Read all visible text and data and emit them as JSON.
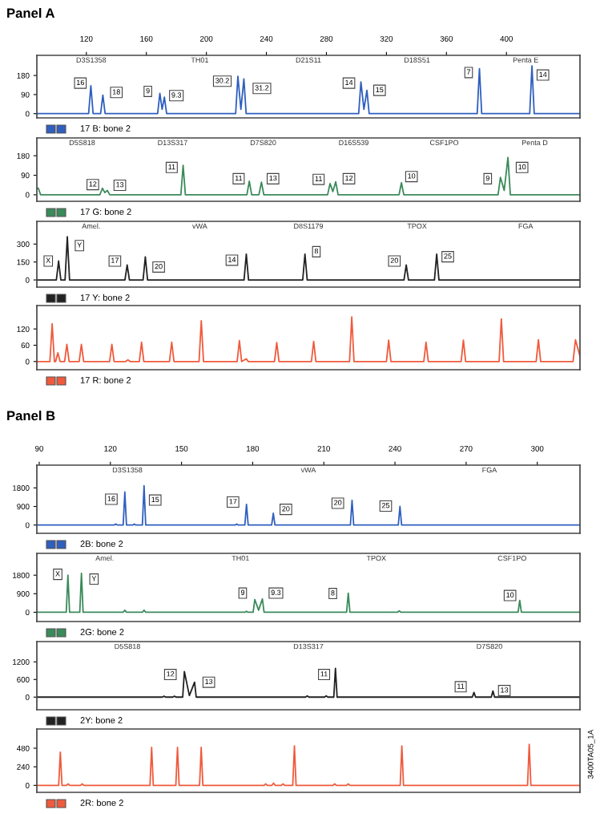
{
  "chart_data": [
    {
      "type": "line",
      "title": "Panel A",
      "x": [
        87,
        121.5,
        123,
        124.5,
        129.5,
        131,
        132.5,
        167.5,
        169,
        170.5,
        172,
        173.5,
        219.5,
        221,
        223,
        225,
        226.5,
        301.5,
        303,
        305,
        307,
        308.5,
        380.5,
        382,
        383.5,
        415.5,
        417,
        418.5,
        449
      ],
      "series": [
        {
          "color": "#2f5fbf",
          "values": [
            0,
            0,
            132,
            0,
            0,
            87,
            0,
            0,
            96,
            20,
            78,
            0,
            0,
            176,
            20,
            164,
            0,
            0,
            150,
            20,
            110,
            0,
            0,
            212,
            0,
            0,
            225,
            0,
            0
          ]
        }
      ],
      "xlim": [
        87,
        449
      ],
      "xticks": [
        120,
        160,
        200,
        240,
        280,
        320,
        360,
        400
      ],
      "ylim": [
        -20,
        275
      ],
      "yticks": [
        0,
        90,
        180
      ],
      "grid": false,
      "annotations": [
        "17 B: bone 2",
        "D3S1358",
        "TH01",
        "D21S11",
        "D18S51",
        "Penta E",
        {
          "text": "16",
          "x": 116,
          "y": 144
        },
        {
          "text": "18",
          "x": 140,
          "y": 100
        },
        {
          "text": "9",
          "x": 161,
          "y": 105
        },
        {
          "text": "9.3",
          "x": 180,
          "y": 85
        },
        {
          "text": "30.2",
          "x": 210.6,
          "y": 153
        },
        {
          "text": "31.2",
          "x": 237,
          "y": 119
        },
        {
          "text": "14",
          "x": 295,
          "y": 144
        },
        {
          "text": "15",
          "x": 315.4,
          "y": 110
        },
        {
          "text": "7",
          "x": 374.8,
          "y": 194
        },
        {
          "text": "14",
          "x": 424.3,
          "y": 182
        }
      ]
    },
    {
      "type": "line",
      "x": [
        87,
        88,
        89.5,
        129,
        130.7,
        132.3,
        134,
        135.6,
        183,
        184.5,
        186,
        227,
        228.6,
        230.2,
        235,
        236.7,
        238.3,
        280.8,
        282.4,
        284.3,
        286.2,
        287.8,
        328.4,
        330,
        331.6,
        394.4,
        396,
        398.5,
        401,
        402.6,
        449
      ],
      "series": [
        {
          "color": "#3a8a5a",
          "values": [
            30,
            30,
            0,
            0,
            30,
            10,
            20,
            0,
            0,
            136,
            0,
            0,
            63,
            0,
            0,
            58,
            0,
            0,
            52,
            15,
            60,
            0,
            0,
            55,
            0,
            0,
            80,
            20,
            172,
            0,
            0
          ]
        }
      ],
      "xlim": [
        87,
        449
      ],
      "ylim": [
        -30,
        262
      ],
      "yticks": [
        0,
        90,
        180
      ],
      "tick_labels": "y",
      "grid": false,
      "annotations": [
        "17 G: bone 2",
        "D5S818",
        "D13S317",
        "D7S820",
        "D16S539",
        "CSF1PO",
        "Penta D",
        {
          "text": "12",
          "x": 124.3,
          "y": 47
        },
        {
          "text": "13",
          "x": 142.3,
          "y": 44
        },
        {
          "text": "11",
          "x": 176.9,
          "y": 126
        },
        {
          "text": "11",
          "x": 221.5,
          "y": 74
        },
        {
          "text": "13",
          "x": 244.4,
          "y": 74
        },
        {
          "text": "11",
          "x": 274.8,
          "y": 71
        },
        {
          "text": "12",
          "x": 295,
          "y": 74
        },
        {
          "text": "10",
          "x": 336.7,
          "y": 84
        },
        {
          "text": "9",
          "x": 387.5,
          "y": 74
        },
        {
          "text": "10",
          "x": 410.4,
          "y": 126
        }
      ]
    },
    {
      "type": "line",
      "x": [
        87,
        100,
        101.5,
        103,
        105.8,
        107.3,
        108.8,
        145.7,
        147.2,
        148.7,
        157.8,
        159.3,
        160.8,
        225.1,
        226.6,
        228.1,
        264.2,
        265.7,
        267.2,
        331.7,
        333.2,
        334.7,
        352,
        353.5,
        355,
        449
      ],
      "series": [
        {
          "color": "#222222",
          "values": [
            0,
            0,
            158,
            0,
            0,
            361,
            0,
            0,
            125,
            0,
            0,
            193,
            0,
            0,
            216,
            0,
            0,
            216,
            0,
            0,
            125,
            0,
            0,
            216,
            0,
            0
          ]
        }
      ],
      "xlim": [
        87,
        449
      ],
      "ylim": [
        -60,
        490
      ],
      "yticks": [
        0,
        150,
        300
      ],
      "tick_labels": "y",
      "grid": false,
      "annotations": [
        "17 Y: bone 2",
        "Amel.",
        "vWA",
        "D8S1179",
        "TPOX",
        "FGA",
        {
          "text": "X",
          "x": 94.6,
          "y": 158
        },
        {
          "text": "Y",
          "x": 115.4,
          "y": 287
        },
        {
          "text": "17",
          "x": 139,
          "y": 158
        },
        {
          "text": "20",
          "x": 168.2,
          "y": 108
        },
        {
          "text": "14",
          "x": 217,
          "y": 165
        },
        {
          "text": "8",
          "x": 273.3,
          "y": 236
        },
        {
          "text": "20",
          "x": 325.3,
          "y": 158
        },
        {
          "text": "25",
          "x": 360.9,
          "y": 194
        }
      ]
    },
    {
      "type": "line",
      "x": [
        87,
        95.7,
        97.2,
        98.7,
        99.5,
        101,
        102.5,
        105.5,
        107,
        108.5,
        115.2,
        116.7,
        118.2,
        135.5,
        137,
        138.5,
        146.2,
        147.7,
        149.2,
        155.3,
        156.8,
        158.3,
        175.4,
        176.9,
        178.4,
        195.1,
        196.6,
        198.1,
        220.5,
        222,
        223.5,
        226.6,
        228,
        245.4,
        246.9,
        248.4,
        270,
        271.5,
        273,
        295.4,
        296.9,
        298.4,
        320,
        321.5,
        323,
        344.9,
        346.4,
        347.9,
        369.8,
        371.3,
        372.8,
        395.1,
        396.6,
        398.1,
        419.8,
        421.3,
        422.8,
        444.4,
        446,
        449
      ],
      "series": [
        {
          "color": "#f05a3c",
          "values": [
            0,
            0,
            139,
            0,
            0,
            32,
            0,
            0,
            63,
            0,
            0,
            63,
            0,
            0,
            63,
            0,
            0,
            6,
            0,
            0,
            71,
            0,
            0,
            71,
            0,
            0,
            150,
            0,
            0,
            77,
            0,
            10,
            0,
            0,
            70,
            0,
            0,
            74,
            0,
            0,
            164,
            0,
            0,
            79,
            0,
            0,
            71,
            0,
            0,
            79,
            0,
            0,
            157,
            0,
            0,
            80,
            0,
            0,
            80,
            20
          ]
        }
      ],
      "xlim": [
        87,
        449
      ],
      "ylim": [
        -30,
        206
      ],
      "yticks": [
        0,
        60,
        120
      ],
      "tick_labels": "y",
      "grid": false,
      "annotations": [
        "17 R: bone 2"
      ]
    },
    {
      "type": "line",
      "title": "Panel B",
      "x": [
        89,
        121.5,
        122.2,
        123,
        125.4,
        126.1,
        126.8,
        129.4,
        130.1,
        130.8,
        133.5,
        134.2,
        134.9,
        172.6,
        173.3,
        174,
        176.7,
        177.4,
        178.1,
        188,
        188.7,
        189.4,
        221.2,
        221.9,
        222.6,
        241.4,
        242.1,
        242.8,
        318
      ],
      "series": [
        {
          "color": "#2f5fbf",
          "values": [
            0,
            0,
            50,
            0,
            0,
            1600,
            0,
            0,
            50,
            0,
            0,
            1900,
            0,
            0,
            50,
            0,
            0,
            1000,
            0,
            0,
            570,
            0,
            0,
            1200,
            0,
            0,
            900,
            0,
            0
          ]
        }
      ],
      "xlim": [
        89,
        318
      ],
      "xticks": [
        90,
        120,
        150,
        180,
        210,
        240,
        270,
        300
      ],
      "ylim": [
        -400,
        2900
      ],
      "yticks": [
        0,
        900,
        1800
      ],
      "grid": false,
      "annotations": [
        "2B: bone 2",
        "D3S1358",
        "vWA",
        "FGA",
        {
          "text": "16",
          "x": 120.4,
          "y": 1249
        },
        {
          "text": "15",
          "x": 138.9,
          "y": 1208
        },
        {
          "text": "17",
          "x": 171.7,
          "y": 1114
        },
        {
          "text": "20",
          "x": 194,
          "y": 760
        },
        {
          "text": "20",
          "x": 215.9,
          "y": 1056
        },
        {
          "text": "25",
          "x": 236.1,
          "y": 921
        }
      ]
    },
    {
      "type": "line",
      "x": [
        89,
        101.4,
        102.1,
        102.8,
        107.1,
        107.8,
        108.5,
        125.4,
        126.1,
        126.8,
        133.5,
        134.2,
        134.9,
        176.7,
        177.4,
        178.1,
        180.2,
        180.9,
        182.5,
        184.1,
        184.8,
        219.6,
        220.3,
        221,
        241.1,
        241.8,
        242.5,
        291.9,
        292.6,
        293.3,
        318
      ],
      "series": [
        {
          "color": "#3a8a5a",
          "values": [
            0,
            0,
            1800,
            0,
            0,
            1890,
            0,
            0,
            100,
            0,
            0,
            100,
            0,
            0,
            50,
            0,
            0,
            620,
            100,
            650,
            0,
            0,
            930,
            0,
            0,
            70,
            0,
            0,
            580,
            0,
            0
          ]
        }
      ],
      "xlim": [
        89,
        318
      ],
      "ylim": [
        -450,
        2860
      ],
      "yticks": [
        0,
        900,
        1800
      ],
      "tick_labels": "y",
      "grid": false,
      "annotations": [
        "2G: bone 2",
        "Amel.",
        "TH01",
        "TPOX",
        "CSF1PO",
        {
          "text": "X",
          "x": 97.8,
          "y": 1843
        },
        {
          "text": "Y",
          "x": 113.1,
          "y": 1612
        },
        {
          "text": "9",
          "x": 175.8,
          "y": 930
        },
        {
          "text": "9.3",
          "x": 189.8,
          "y": 930
        },
        {
          "text": "8",
          "x": 213.8,
          "y": 910
        },
        {
          "text": "10",
          "x": 288.5,
          "y": 813
        }
      ]
    },
    {
      "type": "line",
      "x": [
        89,
        141.9,
        142.6,
        143.3,
        146.3,
        147,
        147.7,
        150.5,
        151.2,
        153.3,
        155.5,
        156.2,
        202.3,
        203,
        203.7,
        210.3,
        211,
        211.7,
        214.2,
        214.9,
        215.6,
        272.6,
        273.3,
        274,
        280.6,
        281.3,
        282,
        318
      ],
      "series": [
        {
          "color": "#222222",
          "values": [
            0,
            0,
            30,
            0,
            0,
            30,
            0,
            0,
            870,
            50,
            510,
            0,
            0,
            40,
            0,
            0,
            40,
            0,
            0,
            980,
            0,
            0,
            160,
            0,
            0,
            210,
            0,
            0
          ]
        }
      ],
      "xlim": [
        89,
        318
      ],
      "ylim": [
        -430,
        1890
      ],
      "yticks": [
        0,
        600,
        1200
      ],
      "tick_labels": "y",
      "grid": false,
      "annotations": [
        "2Y: bone 2",
        "D5S818",
        "D13S317",
        "D7S820",
        {
          "text": "12",
          "x": 145.3,
          "y": 770
        },
        {
          "text": "13",
          "x": 161.5,
          "y": 507
        },
        {
          "text": "11",
          "x": 210.1,
          "y": 770
        },
        {
          "text": "11",
          "x": 267.7,
          "y": 353
        },
        {
          "text": "13",
          "x": 286.1,
          "y": 222
        }
      ]
    },
    {
      "type": "line",
      "x": [
        89,
        98.2,
        98.9,
        99.6,
        101.5,
        102.2,
        102.9,
        107.4,
        108.1,
        108.8,
        136.7,
        137.4,
        138.1,
        147.6,
        148.3,
        149,
        157.6,
        158.3,
        159,
        184.8,
        185.5,
        186.2,
        188.1,
        188.8,
        189.5,
        192.1,
        192.8,
        193.5,
        196.9,
        197.6,
        198.3,
        213.9,
        214.6,
        215.3,
        219.6,
        220.3,
        221,
        242.2,
        242.9,
        243.6,
        295.9,
        296.6,
        297.3,
        318
      ],
      "series": [
        {
          "color": "#f05a3c",
          "values": [
            0,
            0,
            430,
            0,
            0,
            20,
            0,
            0,
            20,
            0,
            0,
            490,
            0,
            0,
            490,
            0,
            0,
            490,
            0,
            0,
            20,
            0,
            0,
            30,
            0,
            0,
            20,
            0,
            0,
            510,
            0,
            0,
            20,
            0,
            0,
            20,
            0,
            0,
            510,
            0,
            0,
            530,
            0,
            0
          ]
        }
      ],
      "xlim": [
        89,
        318
      ],
      "ylim": [
        -90,
        728
      ],
      "yticks": [
        0,
        240,
        480
      ],
      "tick_labels": "y",
      "grid": false,
      "annotations": [
        "2R: bone 2",
        "3400TA05_1A"
      ]
    }
  ]
}
